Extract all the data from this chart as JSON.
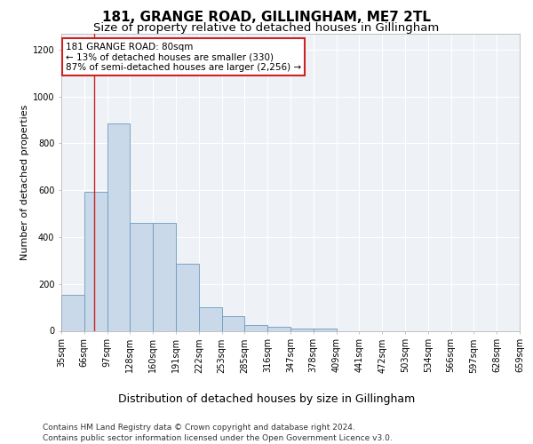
{
  "title1": "181, GRANGE ROAD, GILLINGHAM, ME7 2TL",
  "title2": "Size of property relative to detached houses in Gillingham",
  "xlabel": "Distribution of detached houses by size in Gillingham",
  "ylabel": "Number of detached properties",
  "footer1": "Contains HM Land Registry data © Crown copyright and database right 2024.",
  "footer2": "Contains public sector information licensed under the Open Government Licence v3.0.",
  "bins": [
    "35sqm",
    "66sqm",
    "97sqm",
    "128sqm",
    "160sqm",
    "191sqm",
    "222sqm",
    "253sqm",
    "285sqm",
    "316sqm",
    "347sqm",
    "378sqm",
    "409sqm",
    "441sqm",
    "472sqm",
    "503sqm",
    "534sqm",
    "566sqm",
    "597sqm",
    "628sqm",
    "659sqm"
  ],
  "bar_heights": [
    155,
    595,
    885,
    460,
    460,
    285,
    100,
    62,
    25,
    18,
    10,
    10,
    0,
    0,
    0,
    0,
    0,
    0,
    0,
    0
  ],
  "bar_color": "#c9d9ea",
  "bar_edge_color": "#6a9abf",
  "vline_x": 1.45,
  "vline_color": "#cc2222",
  "annotation_text": "181 GRANGE ROAD: 80sqm\n← 13% of detached houses are smaller (330)\n87% of semi-detached houses are larger (2,256) →",
  "annotation_box_color": "#ffffff",
  "annotation_box_edge": "#cc2222",
  "ylim": [
    0,
    1270
  ],
  "yticks": [
    0,
    200,
    400,
    600,
    800,
    1000,
    1200
  ],
  "bg_color": "#eef2f7",
  "grid_color": "#ffffff",
  "title1_fontsize": 11,
  "title2_fontsize": 9.5,
  "xlabel_fontsize": 9,
  "ylabel_fontsize": 8,
  "annot_fontsize": 7.5,
  "tick_fontsize": 7,
  "footer_fontsize": 6.5
}
